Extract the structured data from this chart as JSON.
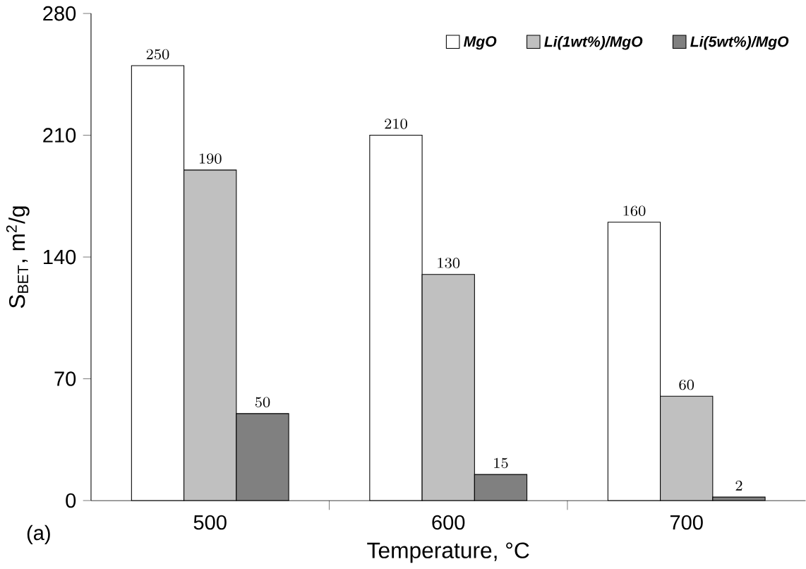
{
  "chart_data": {
    "type": "bar",
    "xlabel": "Temperature, °C",
    "ylabel": "S$_{BET}$, m$^{2}$/g",
    "categories": [
      "500",
      "600",
      "700"
    ],
    "series": [
      {
        "name": "MgO",
        "color": "#ffffff",
        "values": [
          250,
          210,
          160
        ]
      },
      {
        "name": "Li(1wt%)/MgO",
        "color": "#c0c0c0",
        "values": [
          190,
          130,
          60
        ]
      },
      {
        "name": "Li(5wt%)/MgO",
        "color": "#808080",
        "values": [
          50,
          15,
          2
        ]
      }
    ],
    "ylim": [
      0,
      280
    ],
    "yticks": [
      0,
      70,
      140,
      210,
      280
    ],
    "data_labels": true,
    "legend": "top right",
    "grid": false,
    "annotations": [
      "(a)"
    ]
  }
}
